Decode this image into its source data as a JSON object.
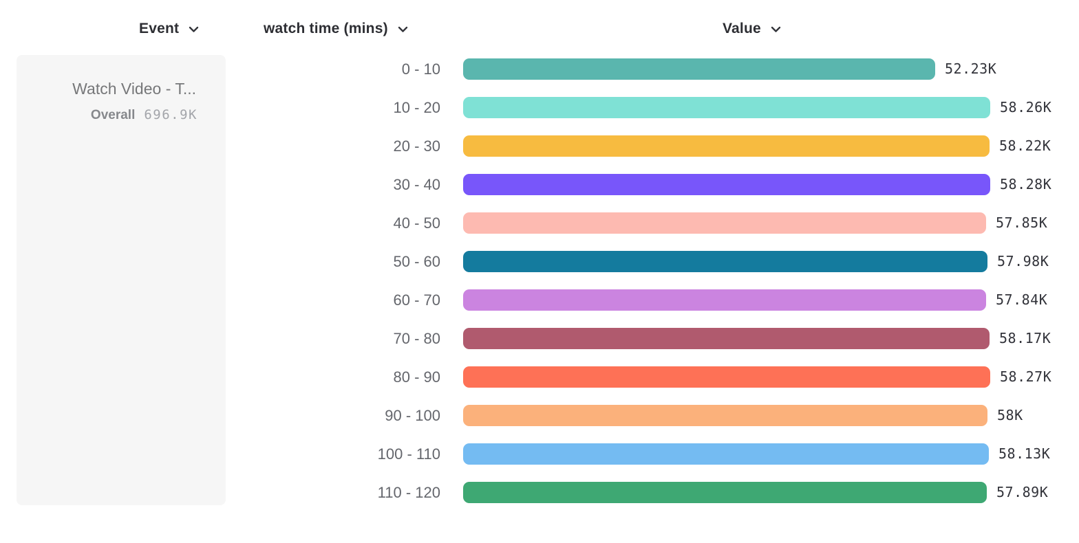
{
  "columns": {
    "event": {
      "label": "Event"
    },
    "breakdown": {
      "label": "watch time (mins)"
    },
    "value": {
      "label": "Value"
    }
  },
  "event_card": {
    "title": "Watch Video - T...",
    "overall_label": "Overall",
    "overall_value": "696.9K"
  },
  "chart_data": {
    "type": "bar",
    "orientation": "horizontal",
    "title": "",
    "xlabel": "Value",
    "ylabel": "watch time (mins)",
    "xlim": [
      0,
      58280
    ],
    "grid": false,
    "legend": false,
    "categories": [
      "0 - 10",
      "10 - 20",
      "20 - 30",
      "30 - 40",
      "40 - 50",
      "50 - 60",
      "60 - 70",
      "70 - 80",
      "80 - 90",
      "90 - 100",
      "100 - 110",
      "110 - 120"
    ],
    "values": [
      52230,
      58260,
      58220,
      58280,
      57850,
      57980,
      57840,
      58170,
      58270,
      58000,
      58130,
      57890
    ],
    "value_labels": [
      "52.23K",
      "58.26K",
      "58.22K",
      "58.28K",
      "57.85K",
      "57.98K",
      "57.84K",
      "58.17K",
      "58.27K",
      "58K",
      "58.13K",
      "57.89K"
    ],
    "colors": [
      "#5ab6ae",
      "#7fe1d5",
      "#f7bb40",
      "#7856fa",
      "#fdbab1",
      "#147b9e",
      "#cb84e0",
      "#b05a6e",
      "#fe7156",
      "#fbb17b",
      "#74bbf2",
      "#3ea873"
    ]
  },
  "ui": {
    "accent_text": "#2d2e33",
    "label_gray": "#64666c",
    "card_bg": "#f6f6f6"
  }
}
